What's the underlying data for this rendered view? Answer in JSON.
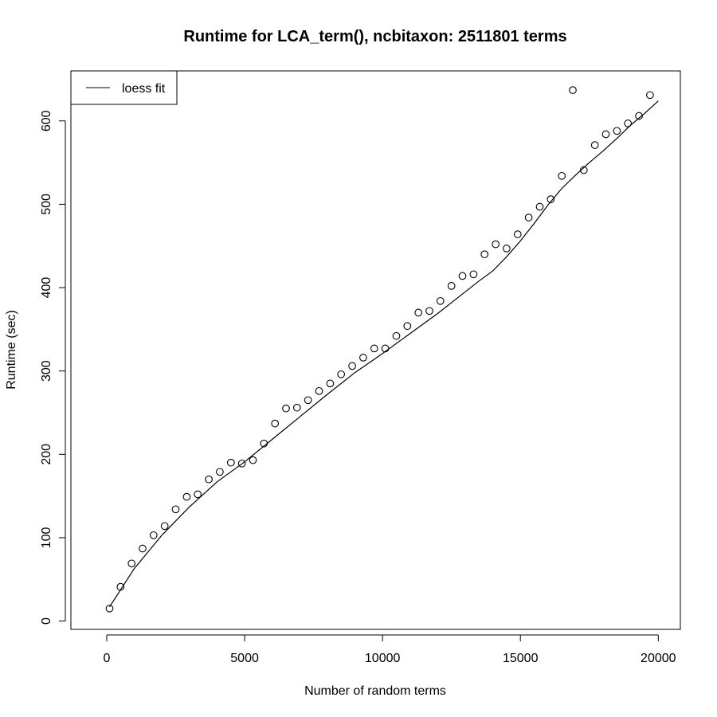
{
  "chart_data": {
    "type": "scatter",
    "title": "Runtime for LCA_term(), ncbitaxon: 2511801 terms",
    "xlabel": "Number of random terms",
    "ylabel": "Runtime (sec)",
    "xlim": [
      -1300,
      20800
    ],
    "ylim": [
      -10,
      660
    ],
    "xticks": [
      0,
      5000,
      10000,
      15000,
      20000
    ],
    "yticks": [
      0,
      100,
      200,
      300,
      400,
      500,
      600
    ],
    "grid": false,
    "legend": {
      "position": "top-left",
      "entries": [
        {
          "label": "loess fit",
          "style": "line"
        }
      ]
    },
    "series": [
      {
        "style": "points",
        "x": [
          100,
          500,
          900,
          1300,
          1700,
          2100,
          2500,
          2900,
          3300,
          3700,
          4100,
          4500,
          4900,
          5300,
          5700,
          6100,
          6500,
          6900,
          7300,
          7700,
          8100,
          8500,
          8900,
          9300,
          9700,
          10100,
          10500,
          10900,
          11300,
          11700,
          12100,
          12500,
          12900,
          13300,
          13700,
          14100,
          14500,
          14900,
          15300,
          15700,
          16100,
          16500,
          16900,
          17300,
          17700,
          18100,
          18500,
          18900,
          19300,
          19700
        ],
        "y": [
          15,
          41,
          69,
          87,
          103,
          114,
          134,
          149,
          152,
          170,
          179,
          190,
          189,
          193,
          213,
          237,
          255,
          256,
          265,
          276,
          285,
          296,
          306,
          316,
          327,
          327,
          342,
          354,
          370,
          372,
          384,
          402,
          414,
          416,
          440,
          452,
          447,
          464,
          484,
          497,
          506,
          534,
          637,
          541,
          571,
          584,
          588,
          597,
          606,
          631
        ]
      },
      {
        "name": "loess fit",
        "style": "line",
        "x": [
          100,
          1000,
          2000,
          3000,
          4000,
          5000,
          6000,
          7000,
          8000,
          9000,
          10000,
          11000,
          12000,
          13000,
          13500,
          14000,
          14500,
          15000,
          15500,
          16000,
          16500,
          17000,
          17500,
          18000,
          18500,
          19000,
          19500,
          20000
        ],
        "y": [
          17,
          63,
          103,
          137,
          167,
          191,
          218,
          245,
          272,
          298,
          321,
          345,
          369,
          395,
          408,
          420,
          437,
          456,
          477,
          499,
          519,
          535,
          550,
          564,
          579,
          595,
          609,
          624
        ]
      }
    ]
  }
}
